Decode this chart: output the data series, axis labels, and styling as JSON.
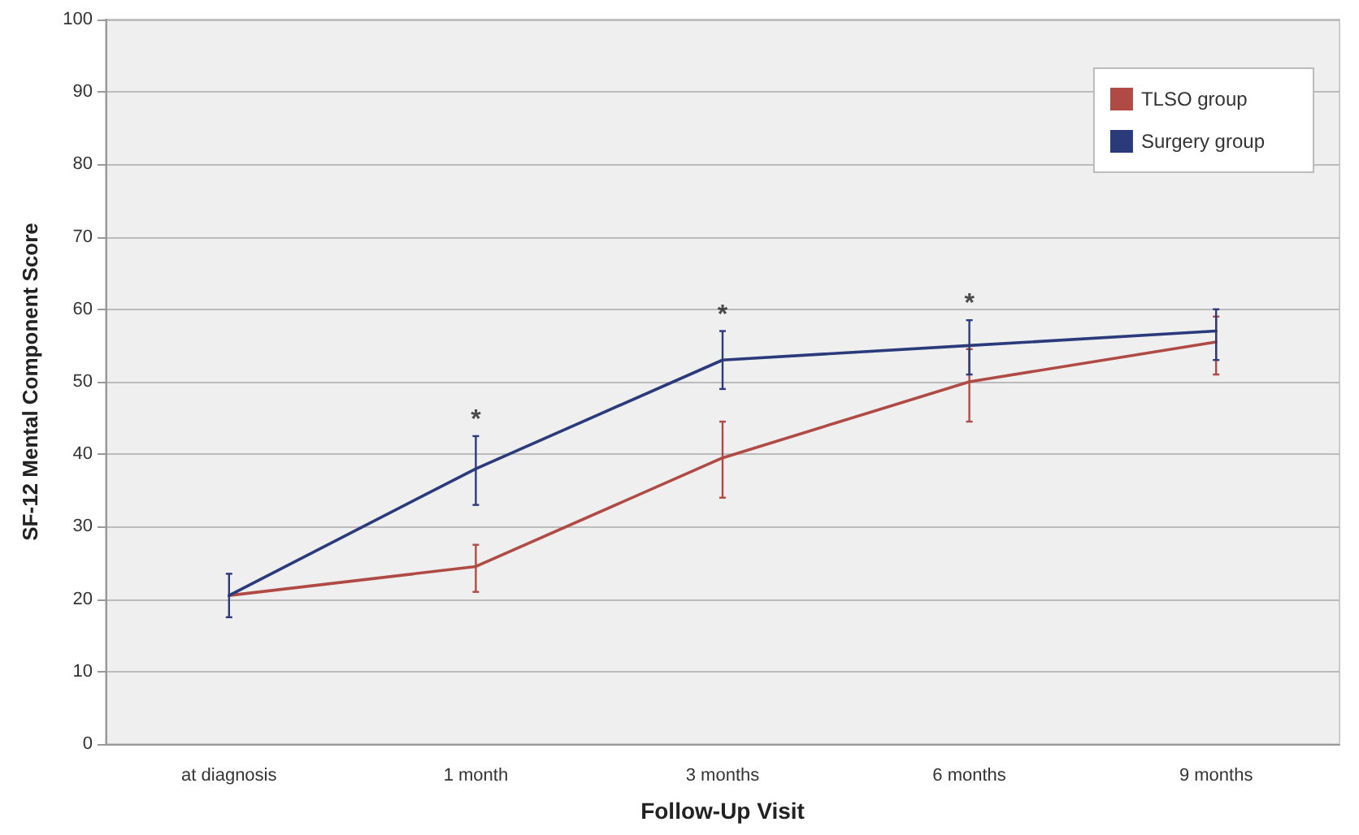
{
  "chart_data": {
    "type": "line",
    "xlabel": "Follow-Up Visit",
    "ylabel": "SF-12 Mental Component Score",
    "categories": [
      "at diagnosis",
      "1 month",
      "3 months",
      "6 months",
      "9 months"
    ],
    "series": [
      {
        "name": "TLSO group",
        "color": "#b04a45",
        "values": [
          20.5,
          24.5,
          39.5,
          50,
          55.5
        ],
        "errors": [
          null,
          [
            21,
            27.5
          ],
          [
            34,
            44.5
          ],
          [
            44.5,
            54.5
          ],
          [
            51,
            59
          ]
        ]
      },
      {
        "name": "Surgery group",
        "color": "#2b3a7a",
        "values": [
          20.5,
          38,
          53,
          55,
          57
        ],
        "errors": [
          [
            17.5,
            23.5
          ],
          [
            33,
            42.5
          ],
          [
            49,
            57
          ],
          [
            51,
            58.5
          ],
          [
            53,
            60
          ]
        ]
      }
    ],
    "ylim": [
      0,
      100
    ],
    "yticks": [
      0,
      10,
      20,
      30,
      40,
      50,
      60,
      70,
      80,
      90,
      100
    ],
    "grid": "y",
    "legend": "top right",
    "marker": "none",
    "line_style": "solid",
    "annotations": [
      {
        "text": "*",
        "x": "1 month",
        "y": 42.5
      },
      {
        "text": "*",
        "x": "3 months",
        "y": 57
      },
      {
        "text": "*",
        "x": "6 months",
        "y": 58.5
      }
    ]
  }
}
